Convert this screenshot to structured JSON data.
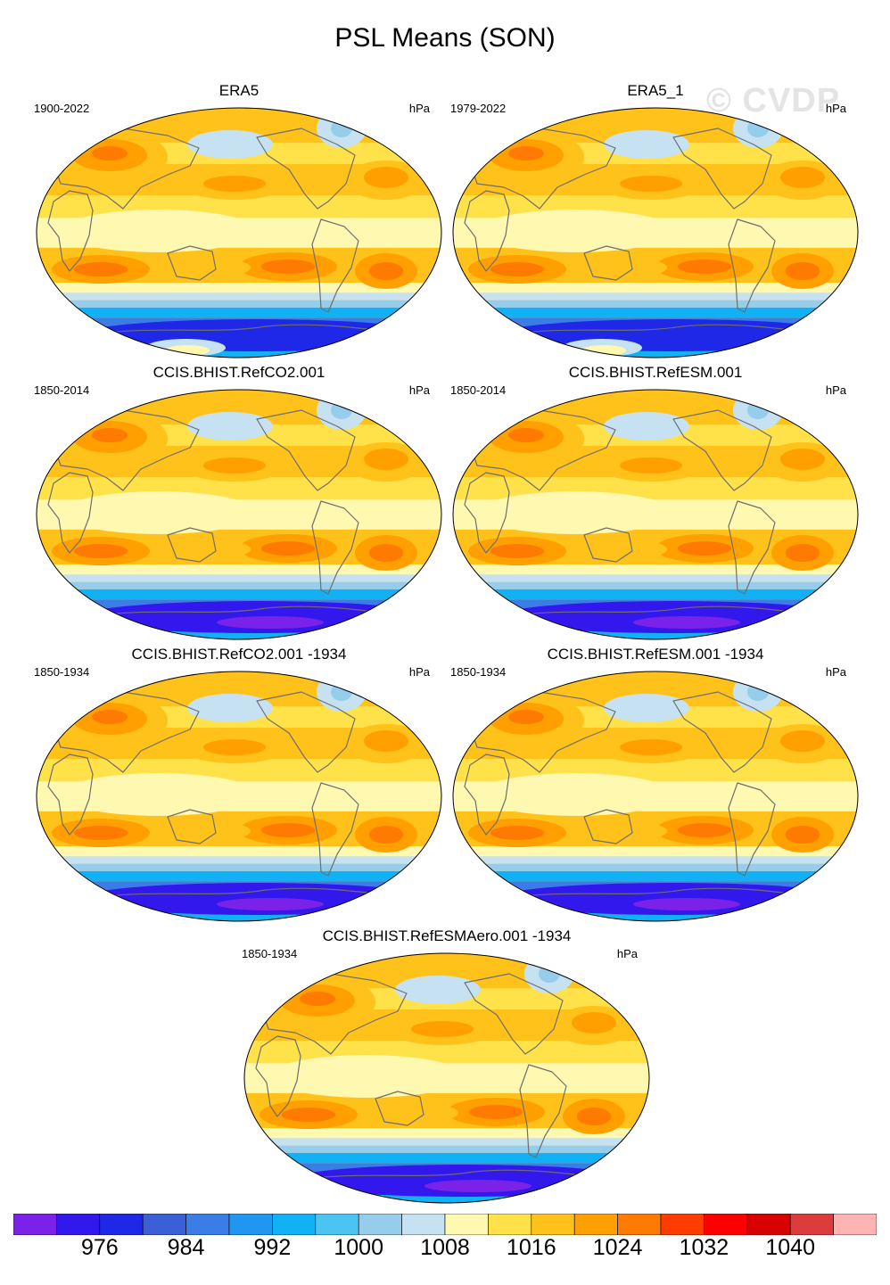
{
  "figure": {
    "title": "PSL Means (SON)",
    "watermark": "© CVDP"
  },
  "panels": [
    {
      "title": "ERA5",
      "years": "1900-2022",
      "units": "hPa"
    },
    {
      "title": "ERA5_1",
      "years": "1979-2022",
      "units": "hPa"
    },
    {
      "title": "CCIS.BHIST.RefCO2.001",
      "years": "1850-2014",
      "units": "hPa"
    },
    {
      "title": "CCIS.BHIST.RefESM.001",
      "years": "1850-2014",
      "units": "hPa"
    },
    {
      "title": "CCIS.BHIST.RefCO2.001 -1934",
      "years": "1850-1934",
      "units": "hPa"
    },
    {
      "title": "CCIS.BHIST.RefESM.001 -1934",
      "years": "1850-1934",
      "units": "hPa"
    },
    {
      "title": "CCIS.BHIST.RefESMAero.001 -1934",
      "years": "1850-1934",
      "units": "hPa"
    }
  ],
  "colorbar": {
    "colors": [
      "#7a22e8",
      "#3318ee",
      "#1e28e6",
      "#3a5fd6",
      "#3a7de6",
      "#2196f0",
      "#10b2f5",
      "#4cc4f2",
      "#96cdea",
      "#c6e2f2",
      "#fff8b0",
      "#ffe14a",
      "#ffc21a",
      "#ffa000",
      "#ff7a00",
      "#ff3c00",
      "#ff0000",
      "#d80000",
      "#dc3c3c",
      "#ffb4b4"
    ],
    "labels": [
      {
        "text": "976",
        "index": 2
      },
      {
        "text": "984",
        "index": 4
      },
      {
        "text": "992",
        "index": 6
      },
      {
        "text": "1000",
        "index": 8
      },
      {
        "text": "1008",
        "index": 10
      },
      {
        "text": "1016",
        "index": 12
      },
      {
        "text": "1024",
        "index": 14
      },
      {
        "text": "1032",
        "index": 16
      },
      {
        "text": "1040",
        "index": 18
      }
    ]
  }
}
